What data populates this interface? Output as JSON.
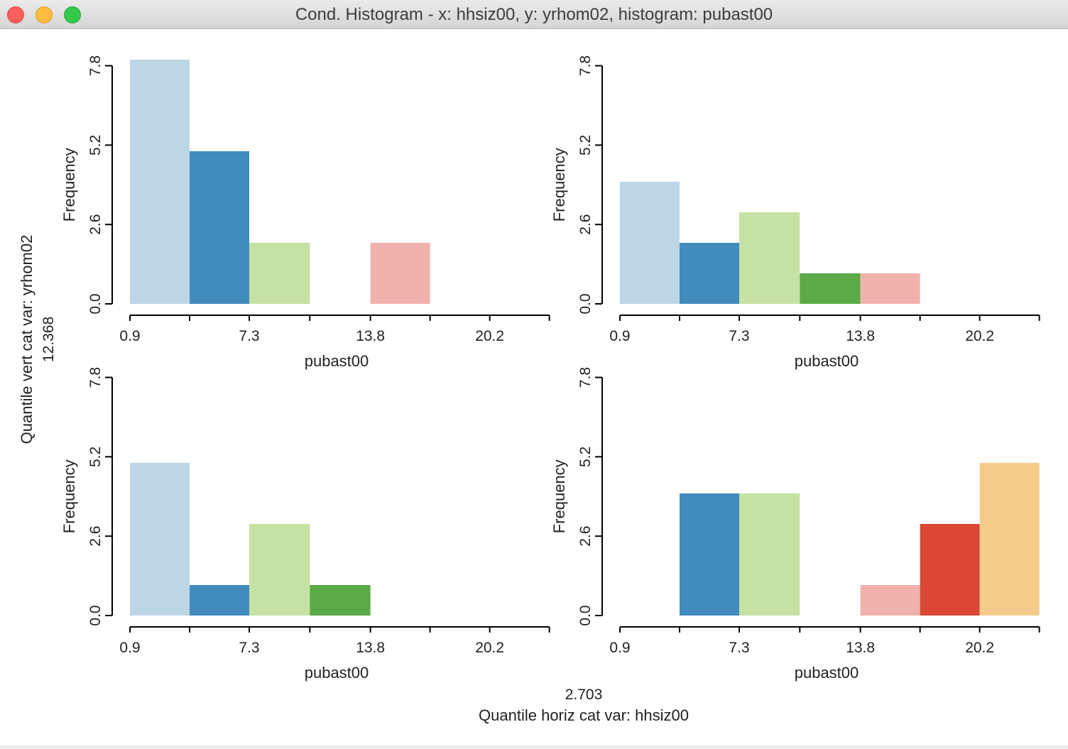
{
  "window": {
    "title": "Cond. Histogram - x: hhsiz00, y: yrhom02, histogram: pubast00"
  },
  "colors": [
    "#bcd6e6",
    "#428bbd",
    "#c5e2a4",
    "#5aaa47",
    "#f1b1ac",
    "#db4735",
    "#f5cb8b"
  ],
  "chart_data": {
    "type": "bar",
    "subtype": "conditional-histogram",
    "variable": "pubast00",
    "bin_edges": [
      0.9,
      4.1,
      7.3,
      10.55,
      13.8,
      17.0,
      20.2,
      23.4
    ],
    "x_ticks": [
      "0.9",
      "7.3",
      "13.8",
      "20.2"
    ],
    "y_ticks": [
      "0.0",
      "2.6",
      "5.2",
      "7.8"
    ],
    "ylim": [
      0,
      7.8
    ],
    "xlabel": "pubast00",
    "ylabel": "Frequency",
    "vert_axis": {
      "label": "Quantile vert cat var: yrhom02",
      "break": "12.368"
    },
    "horiz_axis": {
      "label": "Quantile horiz cat var: hhsiz00",
      "break": "2.703"
    },
    "panels": [
      {
        "position": "top-left",
        "counts": [
          8,
          5,
          2,
          0,
          2,
          0,
          0
        ]
      },
      {
        "position": "top-right",
        "counts": [
          4,
          2,
          3,
          1,
          1,
          0,
          0
        ]
      },
      {
        "position": "bottom-left",
        "counts": [
          5,
          1,
          3,
          1,
          0,
          0,
          0
        ]
      },
      {
        "position": "bottom-right",
        "counts": [
          0,
          4,
          4,
          0,
          1,
          3,
          5
        ]
      }
    ]
  }
}
